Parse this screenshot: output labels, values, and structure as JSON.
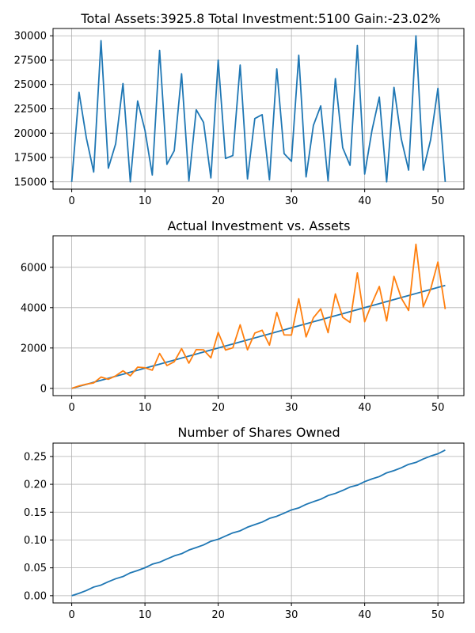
{
  "chart_data": [
    {
      "type": "line",
      "title": "Total Assets:3925.8  Total Investment:5100  Gain:-23.02%",
      "xlabel": "",
      "ylabel": "",
      "xlim": [
        -2.55,
        53.55
      ],
      "ylim": [
        14250,
        30750
      ],
      "grid": true,
      "xticks": [
        0,
        10,
        20,
        30,
        40,
        50
      ],
      "yticks": [
        15000,
        17500,
        20000,
        22500,
        25000,
        27500,
        30000
      ],
      "series": [
        {
          "color": "#1f77b4",
          "x": [
            0,
            1,
            2,
            3,
            4,
            5,
            6,
            7,
            8,
            9,
            10,
            11,
            12,
            13,
            14,
            15,
            16,
            17,
            18,
            19,
            20,
            21,
            22,
            23,
            24,
            25,
            26,
            27,
            28,
            29,
            30,
            31,
            32,
            33,
            34,
            35,
            36,
            37,
            38,
            39,
            40,
            41,
            42,
            43,
            44,
            45,
            46,
            47,
            48,
            49,
            50,
            51
          ],
          "values": [
            15000,
            24200,
            19500,
            16000,
            29500,
            16400,
            18900,
            25100,
            15000,
            23300,
            20300,
            15700,
            28500,
            16800,
            18200,
            26100,
            15100,
            22400,
            21100,
            15400,
            27500,
            17400,
            17700,
            27000,
            15300,
            21500,
            21900,
            15200,
            26600,
            17900,
            17100,
            28000,
            15500,
            20800,
            22800,
            15100,
            25600,
            18500,
            16700,
            29000,
            15800,
            20300,
            23700,
            15000,
            24700,
            19400,
            16200,
            30000,
            16200,
            19300,
            24600,
            15000
          ]
        }
      ]
    },
    {
      "type": "line",
      "title": "Actual Investment vs. Assets",
      "xlabel": "",
      "ylabel": "",
      "xlim": [
        -2.55,
        53.55
      ],
      "ylim": [
        -360,
        7560
      ],
      "grid": true,
      "xticks": [
        0,
        10,
        20,
        30,
        40,
        50
      ],
      "yticks": [
        0,
        2000,
        4000,
        6000
      ],
      "series": [
        {
          "color": "#1f77b4",
          "x": [
            0,
            1,
            2,
            3,
            4,
            5,
            6,
            7,
            8,
            9,
            10,
            11,
            12,
            13,
            14,
            15,
            16,
            17,
            18,
            19,
            20,
            21,
            22,
            23,
            24,
            25,
            26,
            27,
            28,
            29,
            30,
            31,
            32,
            33,
            34,
            35,
            36,
            37,
            38,
            39,
            40,
            41,
            42,
            43,
            44,
            45,
            46,
            47,
            48,
            49,
            50,
            51
          ],
          "values": [
            0,
            100,
            200,
            300,
            400,
            500,
            600,
            700,
            800,
            900,
            1000,
            1100,
            1200,
            1300,
            1400,
            1500,
            1600,
            1700,
            1800,
            1900,
            2000,
            2100,
            2200,
            2300,
            2400,
            2500,
            2600,
            2700,
            2800,
            2900,
            3000,
            3100,
            3200,
            3300,
            3400,
            3500,
            3600,
            3700,
            3800,
            3900,
            4000,
            4100,
            4200,
            4300,
            4400,
            4500,
            4600,
            4700,
            4800,
            4900,
            5000,
            5100
          ]
        },
        {
          "color": "#ff7f0e",
          "x": [
            0,
            1,
            2,
            3,
            4,
            5,
            6,
            7,
            8,
            9,
            10,
            11,
            12,
            13,
            14,
            15,
            16,
            17,
            18,
            19,
            20,
            21,
            22,
            23,
            24,
            25,
            26,
            27,
            28,
            29,
            30,
            31,
            32,
            33,
            34,
            35,
            36,
            37,
            38,
            39,
            40,
            41,
            42,
            43,
            44,
            45,
            46,
            47,
            48,
            49,
            50,
            51
          ],
          "values": [
            0,
            120,
            210,
            270,
            560,
            450,
            620,
            870,
            620,
            1050,
            1020,
            900,
            1730,
            1130,
            1320,
            1970,
            1250,
            1920,
            1910,
            1510,
            2770,
            1900,
            2010,
            3150,
            1910,
            2740,
            2880,
            2140,
            3760,
            2650,
            2640,
            4440,
            2550,
            3500,
            3940,
            2760,
            4680,
            3520,
            3270,
            5720,
            3300,
            4220,
            5050,
            3340,
            5550,
            4470,
            3860,
            7140,
            4040,
            4910,
            6260,
            3926
          ]
        }
      ]
    },
    {
      "type": "line",
      "title": "Number of Shares Owned",
      "xlabel": "",
      "ylabel": "",
      "xlim": [
        -2.55,
        53.55
      ],
      "ylim": [
        -0.013,
        0.274
      ],
      "grid": true,
      "xticks": [
        0,
        10,
        20,
        30,
        40,
        50
      ],
      "yticks": [
        0.0,
        0.05,
        0.1,
        0.15,
        0.2,
        0.25
      ],
      "series": [
        {
          "color": "#1f77b4",
          "x": [
            0,
            1,
            2,
            3,
            4,
            5,
            6,
            7,
            8,
            9,
            10,
            11,
            12,
            13,
            14,
            15,
            16,
            17,
            18,
            19,
            20,
            21,
            22,
            23,
            24,
            25,
            26,
            27,
            28,
            29,
            30,
            31,
            32,
            33,
            34,
            35,
            36,
            37,
            38,
            39,
            40,
            41,
            42,
            43,
            44,
            45,
            46,
            47,
            48,
            49,
            50,
            51
          ],
          "values": [
            0,
            0.0042,
            0.0093,
            0.0155,
            0.019,
            0.0251,
            0.0304,
            0.0344,
            0.041,
            0.0453,
            0.0502,
            0.0566,
            0.0601,
            0.066,
            0.0715,
            0.0754,
            0.082,
            0.0865,
            0.0912,
            0.0977,
            0.1013,
            0.1071,
            0.1128,
            0.1165,
            0.123,
            0.1277,
            0.1322,
            0.1388,
            0.1426,
            0.1482,
            0.154,
            0.1576,
            0.164,
            0.1688,
            0.1732,
            0.1798,
            0.1837,
            0.1891,
            0.1951,
            0.1985,
            0.2048,
            0.2097,
            0.2139,
            0.2206,
            0.2246,
            0.2297,
            0.2359,
            0.2393,
            0.2455,
            0.2507,
            0.2548,
            0.2615
          ]
        }
      ]
    }
  ]
}
